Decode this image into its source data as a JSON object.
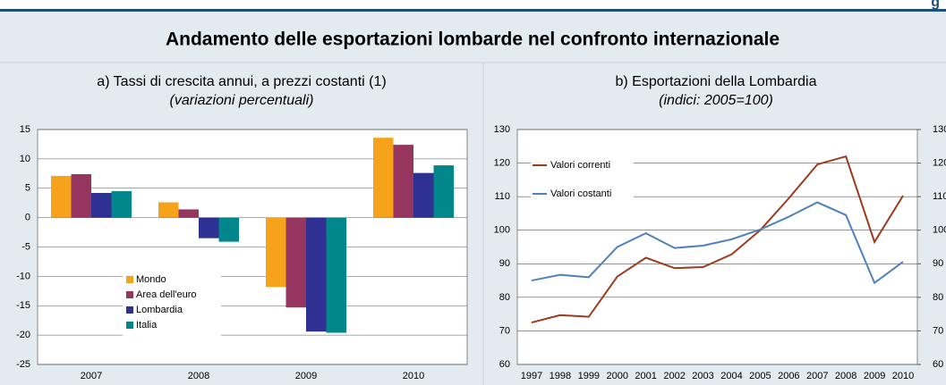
{
  "corner_label": "g",
  "title": "Andamento delle esportazioni lombarde nel confronto internazionale",
  "chart_data": [
    {
      "type": "bar",
      "title": "a) Tassi di crescita annui, a prezzi costanti (1)",
      "subtitle": "(variazioni percentuali)",
      "categories": [
        "2007",
        "2008",
        "2009",
        "2010"
      ],
      "series": [
        {
          "name": "Mondo",
          "color": "#f7a21b",
          "values": [
            7.1,
            2.6,
            -11.8,
            13.6
          ]
        },
        {
          "name": "Area dell'euro",
          "color": "#96365f",
          "values": [
            7.4,
            1.4,
            -15.3,
            12.4
          ]
        },
        {
          "name": "Lombardia",
          "color": "#2e3192",
          "values": [
            4.2,
            -3.5,
            -19.4,
            7.6
          ]
        },
        {
          "name": "Italia",
          "color": "#00868b",
          "values": [
            4.5,
            -4.1,
            -19.6,
            8.9
          ]
        }
      ],
      "ylim": [
        -25,
        15
      ],
      "yticks": [
        -25,
        -20,
        -15,
        -10,
        -5,
        0,
        5,
        10,
        15
      ],
      "grid": true,
      "legend": "lower left"
    },
    {
      "type": "line",
      "title": "b) Esportazioni della Lombardia",
      "subtitle": "(indici: 2005=100)",
      "categories": [
        "1997",
        "1998",
        "1999",
        "2000",
        "2001",
        "2002",
        "2003",
        "2004",
        "2005",
        "2006",
        "2007",
        "2008",
        "2009",
        "2010"
      ],
      "series": [
        {
          "name": "Valori correnti",
          "color": "#9b3a1e",
          "values": [
            72.5,
            74.7,
            74.2,
            86.2,
            91.8,
            88.7,
            89.0,
            92.8,
            100,
            109.5,
            119.6,
            122.0,
            96.5,
            110.3
          ]
        },
        {
          "name": "Valori costanti",
          "color": "#4f81bd",
          "values": [
            85.0,
            86.7,
            86.0,
            95.0,
            99.1,
            94.7,
            95.4,
            97.3,
            100.2,
            104.0,
            108.3,
            104.5,
            84.3,
            90.6
          ]
        }
      ],
      "ylim": [
        60,
        130
      ],
      "yticks": [
        60,
        70,
        80,
        90,
        100,
        110,
        120,
        130
      ],
      "y2lim": [
        60,
        130
      ],
      "y2ticks": [
        60,
        70,
        80,
        90,
        100,
        110,
        120,
        130
      ],
      "grid": true,
      "legend": "upper left"
    }
  ]
}
